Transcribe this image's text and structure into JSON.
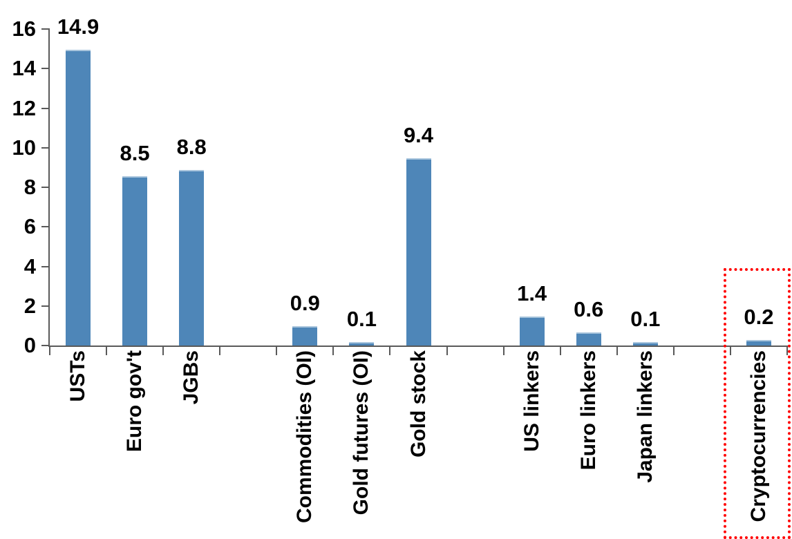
{
  "chart_data": {
    "type": "bar",
    "title": "",
    "xlabel": "",
    "ylabel": "",
    "categories": [
      "USTs",
      "Euro gov't",
      "JGBs",
      "",
      "Commodities (OI)",
      "Gold futures (OI)",
      "Gold stock",
      "",
      "US linkers",
      "Euro linkers",
      "Japan linkers",
      "",
      "Cryptocurrencies"
    ],
    "values": [
      14.9,
      8.5,
      8.8,
      null,
      0.9,
      0.1,
      9.4,
      null,
      1.4,
      0.6,
      0.1,
      null,
      0.2
    ],
    "value_labels": [
      "14.9",
      "8.5",
      "8.8",
      "",
      "0.9",
      "0.1",
      "9.4",
      "",
      "1.4",
      "0.6",
      "0.1",
      "",
      "0.2"
    ],
    "yticks": [
      0,
      2,
      4,
      6,
      8,
      10,
      12,
      14,
      16
    ],
    "ytick_labels": [
      "0",
      "2",
      "4",
      "6",
      "8",
      "10",
      "12",
      "14",
      "16"
    ],
    "ylim": [
      0,
      16
    ],
    "grid": false,
    "legend": "none",
    "colors": {
      "bar_fill": "#4e86b8",
      "bar_top_edge": "#a9c5dd",
      "axis": "#595959",
      "text": "#000000",
      "highlight_box": "#ff0000"
    },
    "highlight": {
      "category": "Cryptocurrencies",
      "value": 0.2,
      "style": "red dotted rectangle around last category"
    }
  }
}
